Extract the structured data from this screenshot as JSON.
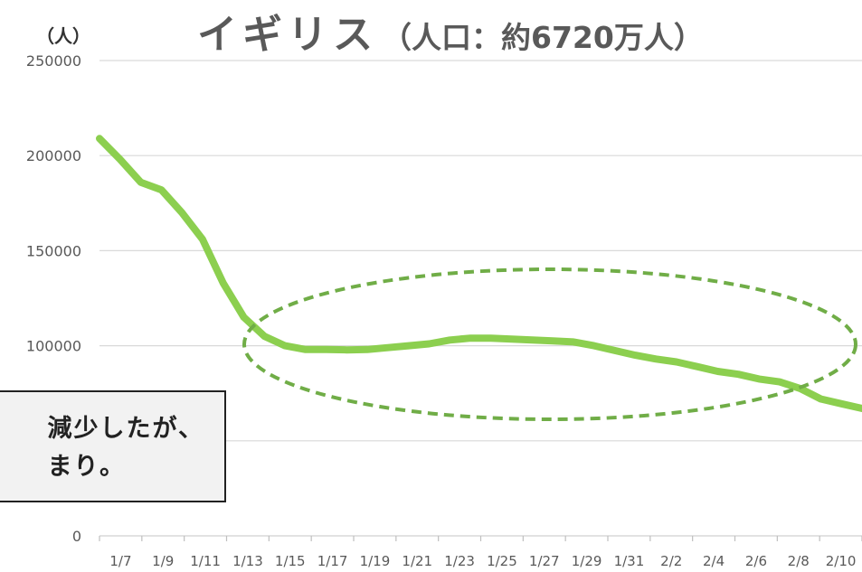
{
  "title": {
    "main": "イギリス",
    "sub": "（人口：約6720万人）"
  },
  "unit_label": "（人）",
  "callout": {
    "line1": "減少したが、",
    "line2": "まり。"
  },
  "colors": {
    "line": "#8ccf4f",
    "ellipse": "#70ad47",
    "grid": "#d9d9d9"
  },
  "chart_data": {
    "type": "line",
    "title": "イギリス（人口：約6720万人）",
    "ylabel": "（人）",
    "ylim": [
      0,
      250000
    ],
    "yticks": [
      0,
      50000,
      100000,
      150000,
      200000,
      250000
    ],
    "ytick_labels": [
      "0",
      "",
      "100000",
      "150000",
      "200000",
      "250000"
    ],
    "x_tick_labels": [
      "1/7",
      "1/9",
      "1/11",
      "1/13",
      "1/15",
      "1/17",
      "1/19",
      "1/21",
      "1/23",
      "1/25",
      "1/27",
      "1/29",
      "1/31",
      "2/2",
      "2/4",
      "2/6",
      "2/8",
      "2/10"
    ],
    "grid": true,
    "legend": "none",
    "series": [
      {
        "values": [
          209000,
          198000,
          186000,
          182000,
          170000,
          156000,
          133000,
          115000,
          105000,
          100000,
          98000,
          98000,
          97800,
          98000,
          99000,
          100000,
          101000,
          103000,
          104000,
          104000,
          103500,
          103000,
          102500,
          102000,
          100000,
          97500,
          95000,
          93000,
          91500,
          89000,
          86500,
          85000,
          82500,
          81000,
          77500,
          72000,
          69500,
          67000
        ]
      }
    ],
    "annotations": [
      {
        "type": "dashed-ellipse",
        "text": ""
      }
    ]
  }
}
